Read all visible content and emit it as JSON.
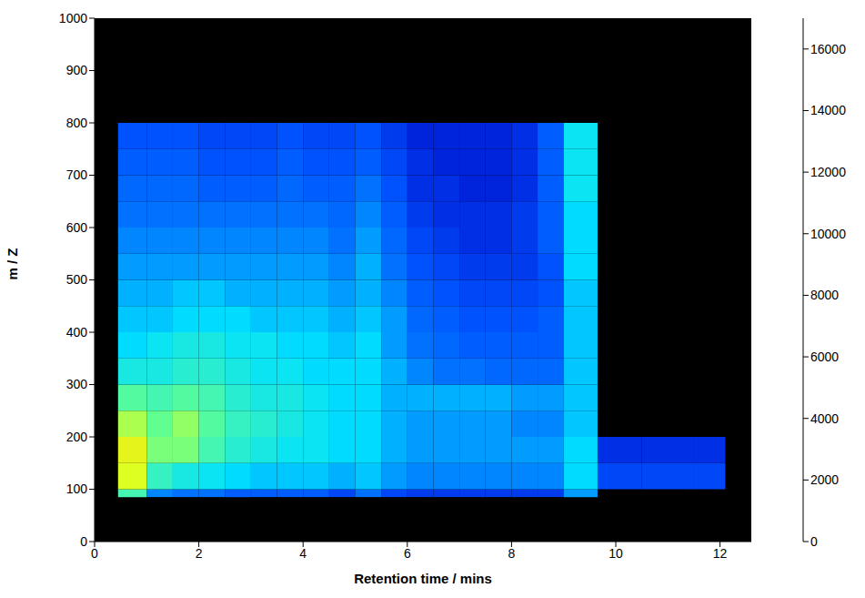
{
  "chart_data": {
    "type": "heatmap",
    "xlabel": "Retention time / mins",
    "ylabel": "m / Z",
    "xlim": [
      0,
      12.6
    ],
    "xticks": [
      0,
      2,
      4,
      6,
      8,
      10,
      12
    ],
    "ylim": [
      0,
      1000
    ],
    "yticks": [
      0,
      100,
      200,
      300,
      400,
      500,
      600,
      700,
      800,
      900,
      1000
    ],
    "grid": false,
    "x_edges": [
      0.45,
      1,
      1.5,
      2,
      2.5,
      3,
      3.5,
      4,
      4.5,
      5,
      5.5,
      6,
      6.5,
      7,
      7.5,
      8,
      8.5,
      9,
      9.65,
      10.5,
      11.5,
      12.1
    ],
    "y_edges": [
      85,
      100,
      150,
      200,
      250,
      300,
      350,
      400,
      450,
      500,
      550,
      600,
      650,
      700,
      750,
      800
    ],
    "values": [
      [
        1500,
        600,
        500,
        500,
        400,
        400,
        400,
        400,
        300,
        500,
        300,
        250,
        250,
        250,
        250,
        250,
        250,
        700,
        null,
        null,
        null
      ],
      [
        2200,
        1400,
        1200,
        1100,
        1000,
        900,
        900,
        900,
        800,
        900,
        700,
        600,
        600,
        600,
        600,
        600,
        600,
        1000,
        300,
        300,
        300
      ],
      [
        2400,
        1800,
        1800,
        1500,
        1300,
        1200,
        1100,
        1100,
        1000,
        1000,
        800,
        700,
        700,
        700,
        700,
        700,
        700,
        1000,
        200,
        200,
        200
      ],
      [
        2000,
        1700,
        1900,
        1600,
        1400,
        1300,
        1200,
        1100,
        1000,
        1000,
        800,
        700,
        700,
        700,
        700,
        600,
        600,
        900,
        null,
        null,
        null
      ],
      [
        1600,
        1500,
        1600,
        1500,
        1300,
        1200,
        1200,
        1100,
        1000,
        1000,
        800,
        800,
        800,
        800,
        800,
        700,
        700,
        900,
        null,
        null,
        null
      ],
      [
        1200,
        1200,
        1300,
        1300,
        1200,
        1100,
        1100,
        1000,
        1000,
        1000,
        800,
        600,
        500,
        500,
        450,
        450,
        450,
        900,
        null,
        null,
        null
      ],
      [
        1000,
        1100,
        1200,
        1200,
        1100,
        1100,
        1000,
        1000,
        900,
        1000,
        700,
        500,
        450,
        400,
        400,
        400,
        400,
        900,
        null,
        null,
        null
      ],
      [
        900,
        900,
        1000,
        1000,
        1000,
        900,
        900,
        900,
        800,
        900,
        700,
        450,
        400,
        350,
        350,
        350,
        400,
        900,
        null,
        null,
        null
      ],
      [
        800,
        800,
        900,
        900,
        800,
        800,
        800,
        800,
        700,
        800,
        600,
        400,
        350,
        300,
        300,
        300,
        350,
        900,
        null,
        null,
        null
      ],
      [
        700,
        700,
        700,
        700,
        700,
        700,
        700,
        700,
        600,
        800,
        500,
        350,
        300,
        250,
        250,
        250,
        350,
        1000,
        null,
        null,
        null
      ],
      [
        600,
        600,
        600,
        600,
        600,
        600,
        600,
        600,
        500,
        700,
        450,
        300,
        250,
        200,
        200,
        250,
        400,
        1000,
        null,
        null,
        null
      ],
      [
        500,
        500,
        500,
        500,
        500,
        500,
        500,
        500,
        450,
        600,
        400,
        250,
        200,
        200,
        200,
        250,
        400,
        1000,
        null,
        null,
        null
      ],
      [
        450,
        450,
        450,
        400,
        400,
        400,
        450,
        400,
        400,
        500,
        350,
        200,
        200,
        150,
        150,
        200,
        400,
        1100,
        null,
        null,
        null
      ],
      [
        400,
        400,
        400,
        350,
        350,
        350,
        400,
        350,
        350,
        400,
        300,
        200,
        150,
        150,
        150,
        200,
        400,
        1100,
        null,
        null,
        null
      ],
      [
        350,
        350,
        350,
        300,
        300,
        300,
        350,
        300,
        300,
        350,
        250,
        150,
        150,
        150,
        150,
        200,
        400,
        1100,
        null,
        null,
        null
      ]
    ],
    "colorbar": {
      "range": [
        0,
        17000
      ],
      "ticks": [
        0,
        2000,
        4000,
        6000,
        8000,
        10000,
        12000,
        14000,
        16000
      ]
    }
  }
}
